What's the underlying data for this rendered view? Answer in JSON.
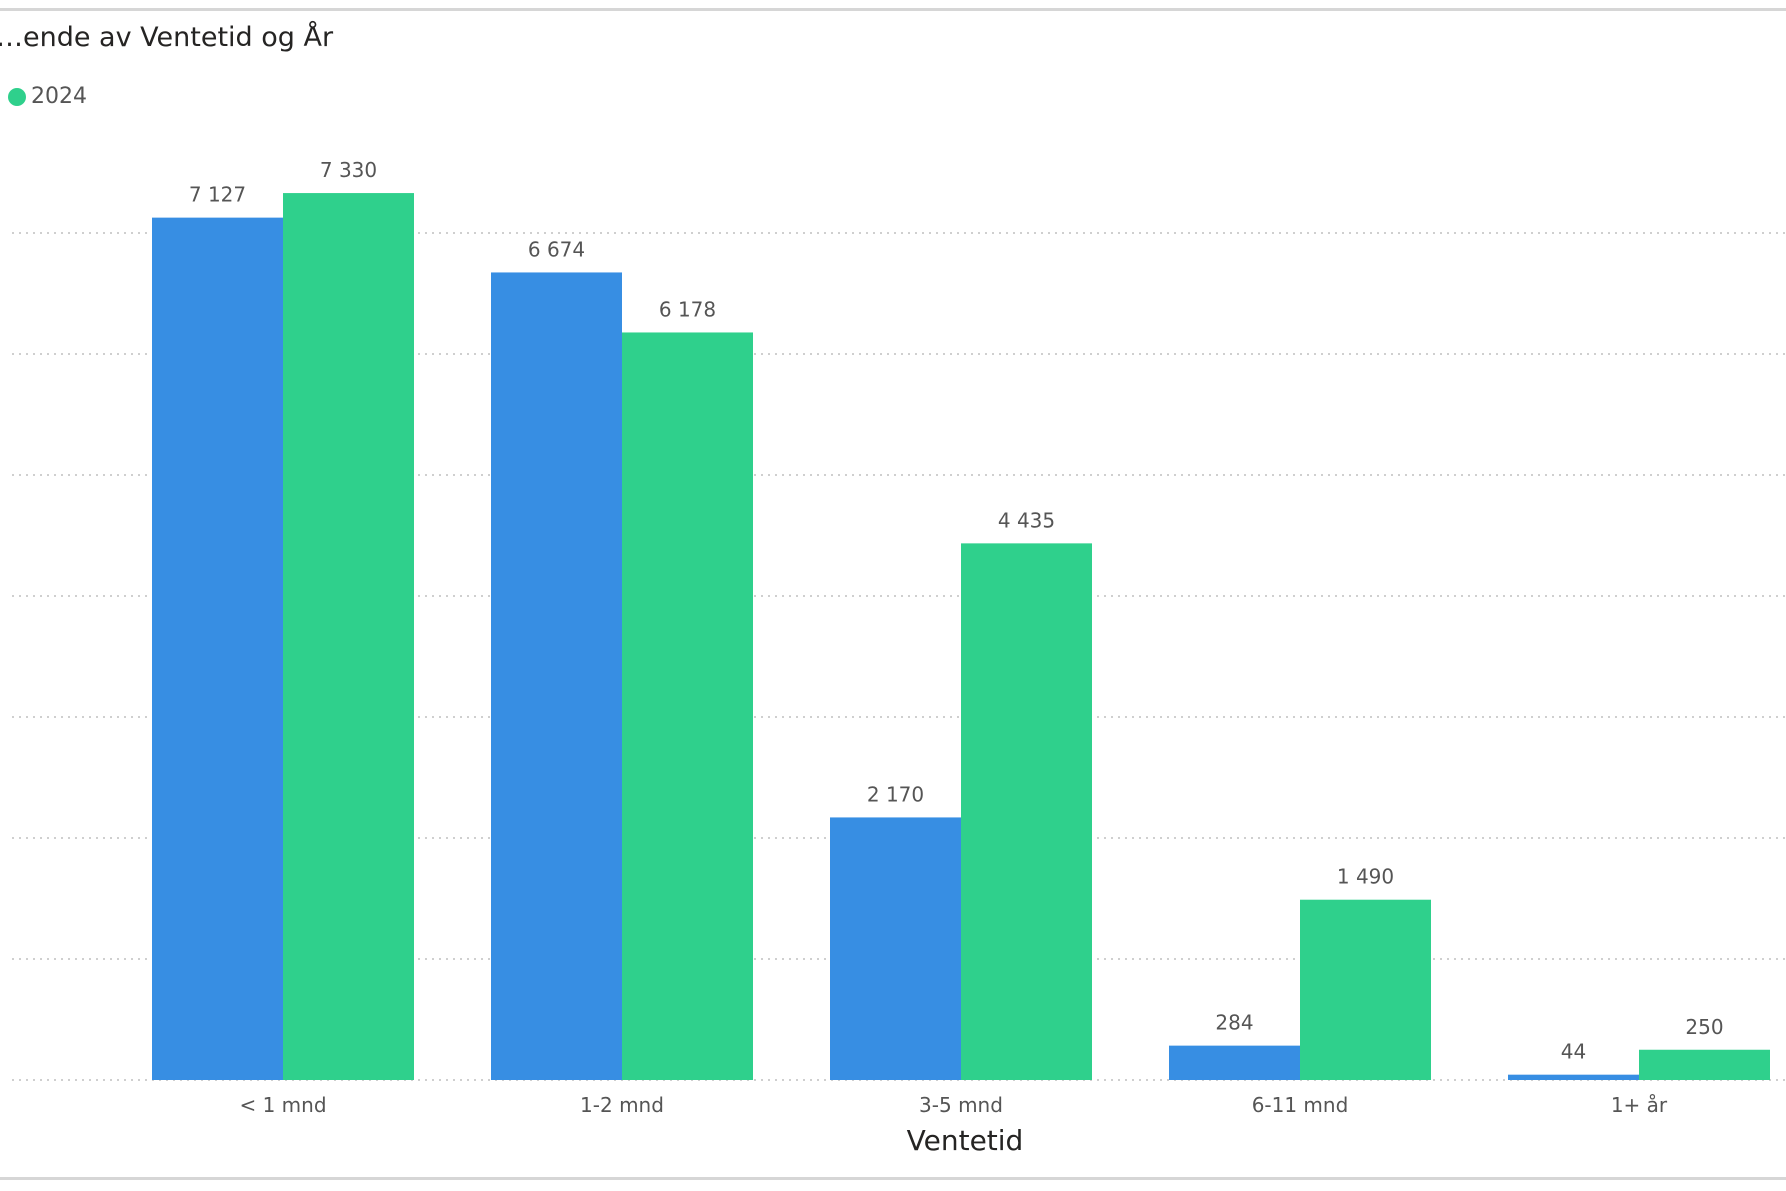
{
  "chart_data": {
    "type": "bar",
    "title": "…ende av Ventetid og År",
    "xlabel": "Ventetid",
    "ylabel": "",
    "categories": [
      "< 1 mnd",
      "1-2 mnd",
      "3-5 mnd",
      "6-11 mnd",
      "1+ år"
    ],
    "series": [
      {
        "name": "",
        "color": "#378ee3",
        "values": [
          7127,
          6674,
          2170,
          284,
          44
        ],
        "labels": [
          "7 127",
          "6 674",
          "2 170",
          "284",
          "44"
        ]
      },
      {
        "name": "2024",
        "color": "#2fd08c",
        "values": [
          7330,
          6178,
          4435,
          1490,
          250
        ],
        "labels": [
          "7 330",
          "6 178",
          "4 435",
          "1 490",
          "250"
        ]
      }
    ],
    "ylim": [
      0,
      7000
    ],
    "grid": true,
    "legend": "top-left"
  }
}
